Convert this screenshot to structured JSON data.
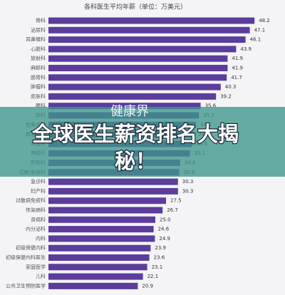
{
  "chart_data": {
    "type": "barh",
    "title": "各科医生平均年薪（单位：万美元）",
    "categories": [
      "骨科",
      "泌尿科",
      "耳鼻喉科",
      "心脏科",
      "放射科",
      "麻醉科",
      "肠胃科",
      "肿瘤科",
      "皮肤科",
      "眼科",
      "肺科",
      "危重病科",
      "普通外科",
      "风湿科",
      "神经科",
      "肝胆科",
      "过敏/免疫科",
      "急诊科",
      "妇产科",
      "过敏病免疫科",
      "传染病科",
      "肾病科",
      "内分泌科",
      "内科",
      "初级保健内科",
      "初级保健内科医生",
      "家庭医学",
      "儿科",
      "公共卫生预防医学"
    ],
    "values": [
      48.2,
      47.1,
      46.1,
      43.9,
      41.9,
      41.9,
      41.7,
      40.3,
      39.2,
      35.6,
      35.2,
      34.5,
      34.0,
      33.6,
      33.1,
      30.8,
      30.6,
      30.3,
      30.3,
      27.5,
      26.7,
      25.0,
      24.6,
      24.9,
      23.9,
      23.6,
      23.1,
      22.1,
      20.9
    ],
    "value_labels": [
      "48.2",
      "47.1",
      "46.1",
      "43.9",
      "41.9",
      "41.9",
      "41.7",
      "40.3",
      "39.2",
      "35.6",
      "35.2",
      "34.5",
      "34.0",
      "33.6",
      "33.1",
      "30.8",
      "30.6",
      "30.3",
      "30.3",
      "27.5",
      "26.7",
      "25.0",
      "24.6",
      "24.9",
      "23.9",
      "23.6",
      "23.1",
      "22.1",
      "20.9"
    ],
    "color": "#5b3d9c",
    "xlim": [
      0,
      50
    ]
  },
  "overlay": {
    "watermark": "健康界",
    "headline": [
      "全球医生薪资排名大揭",
      "秘！"
    ]
  }
}
